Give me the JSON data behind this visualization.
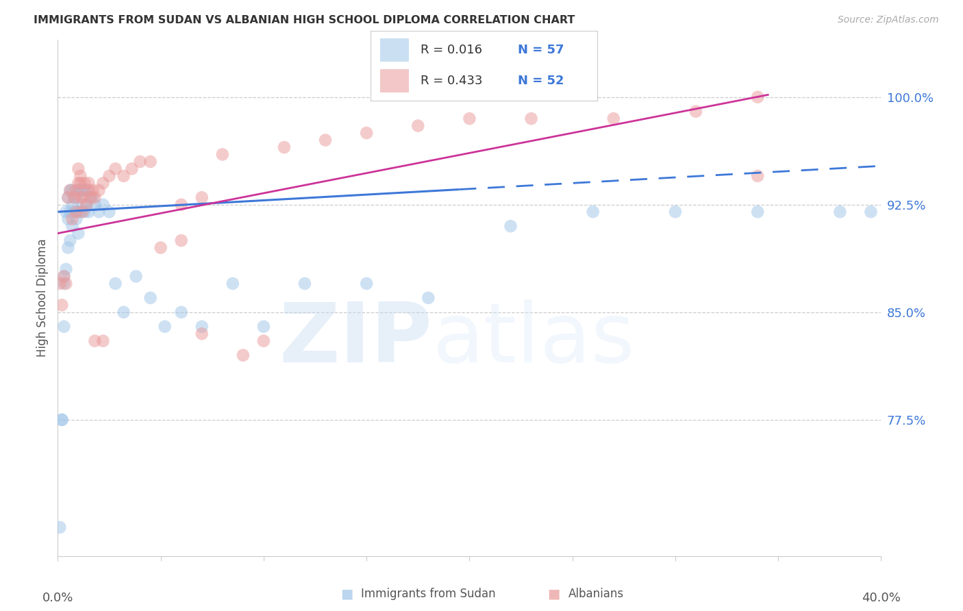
{
  "title": "IMMIGRANTS FROM SUDAN VS ALBANIAN HIGH SCHOOL DIPLOMA CORRELATION CHART",
  "source": "Source: ZipAtlas.com",
  "ylabel": "High School Diploma",
  "ytick_labels": [
    "77.5%",
    "85.0%",
    "92.5%",
    "100.0%"
  ],
  "ytick_values": [
    0.775,
    0.85,
    0.925,
    1.0
  ],
  "xlim": [
    0.0,
    0.4
  ],
  "ylim": [
    0.68,
    1.04
  ],
  "legend_r1": "0.016",
  "legend_n1": "57",
  "legend_r2": "0.433",
  "legend_n2": "52",
  "blue_color": "#9fc5e8",
  "pink_color": "#ea9999",
  "trend_blue": "#3d78d8",
  "trend_pink": "#cc3399",
  "blue_scatter_x": [
    0.001,
    0.002,
    0.002,
    0.003,
    0.003,
    0.003,
    0.004,
    0.004,
    0.005,
    0.005,
    0.005,
    0.006,
    0.006,
    0.006,
    0.007,
    0.007,
    0.007,
    0.008,
    0.008,
    0.009,
    0.009,
    0.01,
    0.01,
    0.01,
    0.011,
    0.011,
    0.012,
    0.012,
    0.013,
    0.013,
    0.014,
    0.014,
    0.015,
    0.016,
    0.017,
    0.018,
    0.02,
    0.022,
    0.025,
    0.028,
    0.032,
    0.038,
    0.045,
    0.052,
    0.06,
    0.07,
    0.085,
    0.1,
    0.12,
    0.15,
    0.18,
    0.22,
    0.26,
    0.3,
    0.34,
    0.38,
    0.395
  ],
  "blue_scatter_y": [
    0.7,
    0.775,
    0.775,
    0.84,
    0.87,
    0.875,
    0.88,
    0.92,
    0.895,
    0.915,
    0.93,
    0.9,
    0.92,
    0.935,
    0.91,
    0.925,
    0.935,
    0.92,
    0.93,
    0.915,
    0.93,
    0.905,
    0.92,
    0.935,
    0.92,
    0.935,
    0.925,
    0.935,
    0.92,
    0.935,
    0.925,
    0.935,
    0.92,
    0.93,
    0.93,
    0.925,
    0.92,
    0.925,
    0.92,
    0.87,
    0.85,
    0.875,
    0.86,
    0.84,
    0.85,
    0.84,
    0.87,
    0.84,
    0.87,
    0.87,
    0.86,
    0.91,
    0.92,
    0.92,
    0.92,
    0.92,
    0.92
  ],
  "pink_scatter_x": [
    0.001,
    0.002,
    0.003,
    0.004,
    0.005,
    0.006,
    0.007,
    0.008,
    0.009,
    0.01,
    0.011,
    0.011,
    0.012,
    0.013,
    0.014,
    0.015,
    0.016,
    0.017,
    0.018,
    0.02,
    0.022,
    0.025,
    0.028,
    0.032,
    0.036,
    0.04,
    0.045,
    0.05,
    0.06,
    0.07,
    0.08,
    0.09,
    0.1,
    0.11,
    0.13,
    0.15,
    0.175,
    0.2,
    0.23,
    0.27,
    0.31,
    0.34,
    0.06,
    0.07,
    0.009,
    0.01,
    0.011,
    0.012,
    0.015,
    0.018,
    0.022,
    0.34
  ],
  "pink_scatter_y": [
    0.87,
    0.855,
    0.875,
    0.87,
    0.93,
    0.935,
    0.915,
    0.93,
    0.935,
    0.94,
    0.93,
    0.945,
    0.93,
    0.94,
    0.925,
    0.94,
    0.93,
    0.935,
    0.93,
    0.935,
    0.94,
    0.945,
    0.95,
    0.945,
    0.95,
    0.955,
    0.955,
    0.895,
    0.925,
    0.93,
    0.96,
    0.82,
    0.83,
    0.965,
    0.97,
    0.975,
    0.98,
    0.985,
    0.985,
    0.985,
    0.99,
    1.0,
    0.9,
    0.835,
    0.92,
    0.95,
    0.94,
    0.92,
    0.935,
    0.83,
    0.83,
    0.945
  ],
  "blue_trend_x0": 0.0,
  "blue_trend_x_solid_end": 0.195,
  "blue_trend_x_end": 0.4,
  "pink_trend_x0": 0.0,
  "pink_trend_x_end": 0.345
}
